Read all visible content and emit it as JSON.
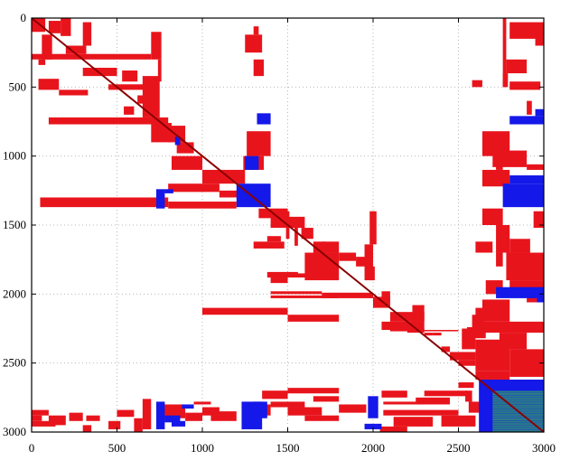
{
  "chart_data": {
    "type": "heatmap",
    "title": "",
    "xlabel": "",
    "ylabel": "",
    "xlim": [
      0,
      3000
    ],
    "ylim": [
      3000,
      0
    ],
    "x_ticks": [
      "0",
      "500",
      "1000",
      "1500",
      "2000",
      "2500",
      "3000"
    ],
    "y_ticks": [
      "0",
      "500",
      "1000",
      "1500",
      "2000",
      "2500",
      "3000"
    ],
    "grid": true,
    "colors": {
      "low_rank": "#e8141c",
      "dense": "#1418e8",
      "diagonal": "#8b0000",
      "dense_inner": "#2a7a8a"
    },
    "diagonal": [
      0,
      3000
    ],
    "low_rank_blocks": [
      [
        0,
        80,
        0,
        100
      ],
      [
        100,
        170,
        20,
        110
      ],
      [
        170,
        230,
        0,
        130
      ],
      [
        300,
        350,
        30,
        200
      ],
      [
        60,
        120,
        120,
        300
      ],
      [
        40,
        80,
        300,
        340
      ],
      [
        40,
        160,
        440,
        520
      ],
      [
        200,
        320,
        200,
        260
      ],
      [
        0,
        700,
        260,
        300
      ],
      [
        300,
        500,
        360,
        420
      ],
      [
        530,
        620,
        380,
        460
      ],
      [
        620,
        700,
        560,
        620
      ],
      [
        540,
        600,
        640,
        700
      ],
      [
        450,
        700,
        480,
        520
      ],
      [
        160,
        330,
        520,
        560
      ],
      [
        100,
        800,
        720,
        770
      ],
      [
        650,
        750,
        420,
        720
      ],
      [
        700,
        760,
        100,
        300
      ],
      [
        740,
        760,
        300,
        460
      ],
      [
        700,
        820,
        760,
        900
      ],
      [
        800,
        900,
        780,
        900
      ],
      [
        850,
        950,
        900,
        980
      ],
      [
        1250,
        1350,
        120,
        250
      ],
      [
        1300,
        1330,
        60,
        120
      ],
      [
        1300,
        1360,
        300,
        420
      ],
      [
        1260,
        1400,
        820,
        1000
      ],
      [
        1240,
        1360,
        1000,
        1100
      ],
      [
        820,
        1000,
        1000,
        1100
      ],
      [
        1000,
        1250,
        1100,
        1200
      ],
      [
        800,
        1100,
        1200,
        1260
      ],
      [
        50,
        800,
        1300,
        1370
      ],
      [
        800,
        1200,
        1330,
        1380
      ],
      [
        1100,
        1250,
        1250,
        1300
      ],
      [
        1330,
        1500,
        1380,
        1450
      ],
      [
        1400,
        1600,
        1440,
        1520
      ],
      [
        1580,
        1650,
        1520,
        1600
      ],
      [
        1650,
        1800,
        1620,
        1700
      ],
      [
        1800,
        1900,
        1700,
        1760
      ],
      [
        1900,
        1960,
        1730,
        1800
      ],
      [
        1950,
        2000,
        1640,
        1900
      ],
      [
        1980,
        2010,
        1800,
        1900
      ],
      [
        1980,
        2020,
        1400,
        1640
      ],
      [
        1490,
        1510,
        1400,
        1600
      ],
      [
        1540,
        1560,
        1500,
        1650
      ],
      [
        1700,
        1720,
        1620,
        1700
      ],
      [
        1380,
        1460,
        1580,
        1620
      ],
      [
        1300,
        1480,
        1620,
        1670
      ],
      [
        1380,
        1560,
        1840,
        1880
      ],
      [
        1600,
        1800,
        1700,
        1900
      ],
      [
        1500,
        1700,
        1850,
        1880
      ],
      [
        1400,
        1500,
        1880,
        1920
      ],
      [
        1400,
        1700,
        1980,
        2000
      ],
      [
        1700,
        2000,
        1990,
        2030
      ],
      [
        1400,
        1800,
        2010,
        2030
      ],
      [
        2000,
        2100,
        2020,
        2100
      ],
      [
        2050,
        2100,
        1980,
        2060
      ],
      [
        2100,
        2300,
        2130,
        2200
      ],
      [
        2200,
        2300,
        2200,
        2280
      ],
      [
        2230,
        2300,
        2080,
        2200
      ],
      [
        2300,
        2350,
        2280,
        2300
      ],
      [
        2350,
        2400,
        2280,
        2300
      ],
      [
        2300,
        2500,
        2260,
        2270
      ],
      [
        2100,
        2300,
        2250,
        2270
      ],
      [
        2400,
        2450,
        2380,
        2420
      ],
      [
        2450,
        2600,
        2420,
        2480
      ],
      [
        2500,
        2600,
        2480,
        2520
      ],
      [
        2050,
        2250,
        2200,
        2260
      ],
      [
        1000,
        1500,
        2100,
        2150
      ],
      [
        1500,
        1800,
        2150,
        2200
      ],
      [
        2600,
        2650,
        2100,
        2200
      ],
      [
        2580,
        2650,
        2150,
        2250
      ],
      [
        2550,
        2660,
        2240,
        2320
      ],
      [
        2520,
        2600,
        2250,
        2400
      ],
      [
        2600,
        2800,
        2330,
        2560
      ],
      [
        2800,
        3000,
        2400,
        2600
      ],
      [
        2600,
        2800,
        2560,
        2620
      ],
      [
        2540,
        2580,
        2700,
        2780
      ],
      [
        2560,
        2680,
        2780,
        2860
      ],
      [
        2760,
        2780,
        0,
        500
      ],
      [
        2780,
        2900,
        300,
        400
      ],
      [
        2800,
        3000,
        30,
        150
      ],
      [
        2760,
        2790,
        400,
        500
      ],
      [
        2900,
        2930,
        600,
        700
      ],
      [
        2950,
        3000,
        100,
        200
      ],
      [
        2580,
        2640,
        450,
        500
      ],
      [
        2800,
        2980,
        460,
        520
      ],
      [
        2640,
        2800,
        820,
        1000
      ],
      [
        2720,
        2760,
        1000,
        1100
      ],
      [
        2700,
        2900,
        960,
        1080
      ],
      [
        2900,
        3000,
        1060,
        1100
      ],
      [
        2640,
        2800,
        1100,
        1220
      ],
      [
        2640,
        2760,
        1380,
        1500
      ],
      [
        2720,
        2800,
        1500,
        1700
      ],
      [
        2940,
        3000,
        1400,
        1520
      ],
      [
        2800,
        2920,
        1600,
        1700
      ],
      [
        2600,
        2700,
        1620,
        1700
      ],
      [
        2720,
        2760,
        1700,
        1800
      ],
      [
        2780,
        3000,
        1700,
        1900
      ],
      [
        2660,
        2760,
        1900,
        2000
      ],
      [
        2800,
        3000,
        1900,
        2000
      ],
      [
        2640,
        2800,
        2040,
        2200
      ],
      [
        2900,
        3000,
        2000,
        2060
      ],
      [
        2640,
        3000,
        2200,
        2280
      ],
      [
        2740,
        2900,
        2280,
        2400
      ],
      [
        0,
        100,
        2840,
        2880
      ],
      [
        0,
        60,
        2880,
        2920
      ],
      [
        0,
        140,
        2920,
        2960
      ],
      [
        100,
        200,
        2880,
        2950
      ],
      [
        220,
        300,
        2860,
        2920
      ],
      [
        320,
        400,
        2880,
        2920
      ],
      [
        300,
        350,
        2950,
        3000
      ],
      [
        500,
        600,
        2840,
        2890
      ],
      [
        450,
        520,
        2920,
        2980
      ],
      [
        600,
        650,
        2900,
        3000
      ],
      [
        650,
        700,
        2760,
        2980
      ],
      [
        760,
        900,
        2800,
        2900
      ],
      [
        900,
        1000,
        2860,
        2920
      ],
      [
        950,
        1050,
        2780,
        2800
      ],
      [
        1000,
        1100,
        2820,
        2880
      ],
      [
        1050,
        1200,
        2850,
        2920
      ],
      [
        1250,
        1300,
        2860,
        2930
      ],
      [
        1350,
        1500,
        2700,
        2760
      ],
      [
        1350,
        1400,
        2800,
        2880
      ],
      [
        1400,
        1600,
        2780,
        2820
      ],
      [
        1500,
        1700,
        2820,
        2880
      ],
      [
        1600,
        1800,
        2880,
        2920
      ],
      [
        1500,
        1800,
        2680,
        2720
      ],
      [
        1650,
        1800,
        2740,
        2780
      ],
      [
        1800,
        1960,
        2800,
        2860
      ],
      [
        2050,
        2200,
        2700,
        2750
      ],
      [
        2060,
        2300,
        2780,
        2800
      ],
      [
        2060,
        2500,
        2840,
        2880
      ],
      [
        2120,
        2350,
        2890,
        2960
      ],
      [
        2040,
        2200,
        2960,
        3000
      ],
      [
        2250,
        2450,
        2750,
        2800
      ],
      [
        2300,
        2550,
        2700,
        2740
      ],
      [
        2400,
        2600,
        2880,
        2960
      ],
      [
        2500,
        2590,
        2640,
        2680
      ]
    ],
    "dense_blocks": [
      [
        730,
        780,
        2780,
        2980
      ],
      [
        780,
        870,
        2880,
        2930
      ],
      [
        820,
        900,
        2920,
        2960
      ],
      [
        880,
        950,
        2800,
        2830
      ],
      [
        1230,
        1350,
        2780,
        2980
      ],
      [
        1300,
        1380,
        2780,
        2900
      ],
      [
        1970,
        2030,
        2740,
        2900
      ],
      [
        1950,
        2050,
        2940,
        2980
      ],
      [
        2620,
        3000,
        2620,
        3000
      ],
      [
        2800,
        3000,
        710,
        770
      ],
      [
        2950,
        3000,
        660,
        710
      ],
      [
        2760,
        3000,
        1200,
        1370
      ],
      [
        2800,
        3000,
        1140,
        1200
      ],
      [
        2720,
        3000,
        1950,
        2030
      ],
      [
        2960,
        3000,
        2030,
        2060
      ],
      [
        1320,
        1400,
        690,
        770
      ],
      [
        1200,
        1400,
        1200,
        1370
      ],
      [
        1250,
        1330,
        1000,
        1100
      ],
      [
        730,
        780,
        1240,
        1380
      ],
      [
        780,
        830,
        1240,
        1270
      ],
      [
        840,
        870,
        860,
        920
      ]
    ],
    "dense_inner_blocks": [
      [
        2700,
        3000,
        2700,
        3000
      ]
    ],
    "low_rank_labels": []
  }
}
